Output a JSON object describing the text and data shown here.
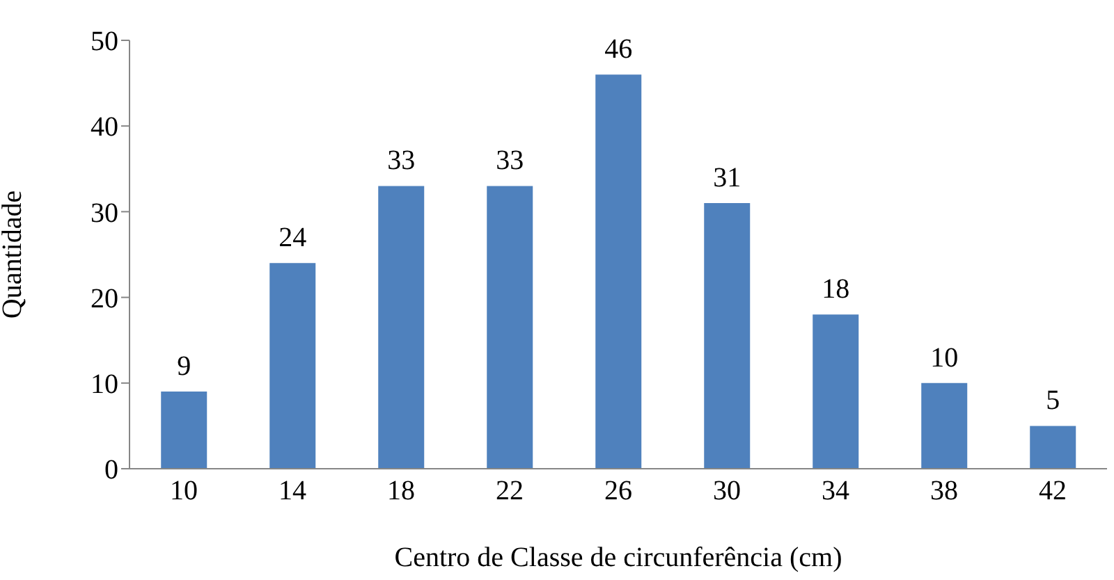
{
  "chart_data": {
    "type": "bar",
    "xlabel": "Centro de Classe de circunferência (cm)",
    "ylabel": "Quantidade",
    "categories": [
      "10",
      "14",
      "18",
      "22",
      "26",
      "30",
      "34",
      "38",
      "42"
    ],
    "values": [
      9,
      24,
      33,
      33,
      46,
      31,
      18,
      10,
      5
    ],
    "color": "#4f81bd",
    "ylim": [
      0,
      50
    ],
    "yticks": [
      0,
      10,
      20,
      30,
      40,
      50
    ],
    "data_labels": true
  }
}
